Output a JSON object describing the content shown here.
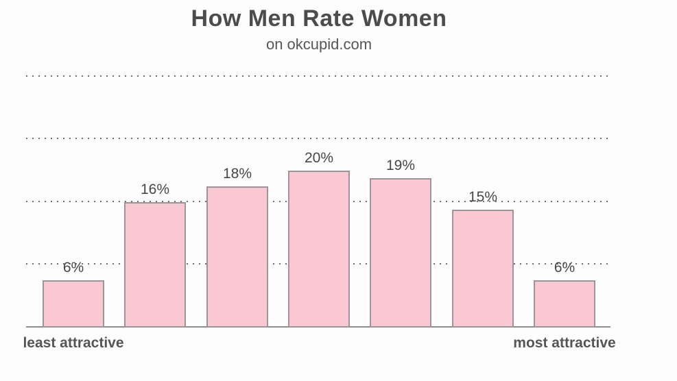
{
  "chart_data": {
    "type": "bar",
    "title": "How Men Rate Women",
    "subtitle": "on okcupid.com",
    "values": [
      6,
      16,
      18,
      20,
      19,
      15,
      6
    ],
    "value_labels": [
      "6%",
      "16%",
      "18%",
      "20%",
      "19%",
      "15%",
      "6%"
    ],
    "x_axis_left_label": "least attractive",
    "x_axis_right_label": "most attractive",
    "xlabel": "",
    "ylabel": "",
    "ylim": [
      0,
      33
    ],
    "gridlines_pct": [
      8,
      16,
      24,
      32
    ],
    "grid_style": "dotted-horizontal",
    "legend": "none",
    "colors": {
      "bar_fill": "#f9c8d3",
      "bar_border": "#9c9497",
      "grid_dot": "#6f6f6f",
      "axis_line": "#8c8c8c",
      "title_text": "#4c4c4c",
      "label_text": "#474747"
    }
  }
}
